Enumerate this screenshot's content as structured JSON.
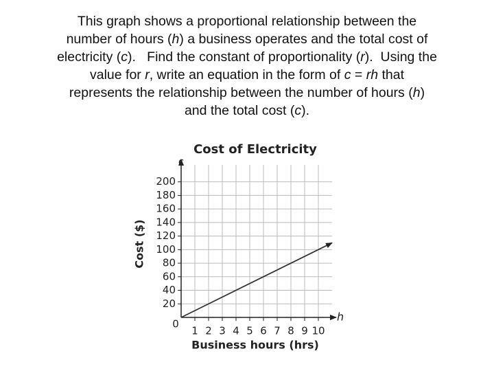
{
  "question": [
    [
      {
        "text": "This graph shows a proportional relationship between the"
      }
    ],
    [
      {
        "text": "number of hours ("
      },
      {
        "text": "h",
        "italic": true
      },
      {
        "text": ") a business operates and the total cost of"
      }
    ],
    [
      {
        "text": "electricity ("
      },
      {
        "text": "c",
        "italic": true
      },
      {
        "text": ").   Find the constant of proportionality ("
      },
      {
        "text": "r",
        "italic": true
      },
      {
        "text": ").  Using the"
      }
    ],
    [
      {
        "text": "value for "
      },
      {
        "text": "r",
        "italic": true
      },
      {
        "text": ", write an equation in the form of "
      },
      {
        "text": "c",
        "italic": true
      },
      {
        "text": " = "
      },
      {
        "text": "rh",
        "italic": true
      },
      {
        "text": " that"
      }
    ],
    [
      {
        "text": "represents the relationship between the number of hours ("
      },
      {
        "text": "h",
        "italic": true
      },
      {
        "text": ")"
      }
    ],
    [
      {
        "text": "and the total cost ("
      },
      {
        "text": "c",
        "italic": true
      },
      {
        "text": ")."
      }
    ]
  ],
  "chart_data": {
    "type": "line",
    "title": "Cost of Electricity",
    "x_label": "Business hours (hrs)",
    "y_label": "Cost ($)",
    "x_axis_name": "h",
    "y_axis_name": "c",
    "origin_label": "0",
    "xlim": [
      0,
      11
    ],
    "ylim": [
      0,
      225
    ],
    "xticks": [
      1,
      2,
      3,
      4,
      5,
      6,
      7,
      8,
      9,
      10
    ],
    "yticks": [
      20,
      40,
      60,
      80,
      100,
      120,
      140,
      160,
      180,
      200
    ],
    "grid": true,
    "series": [
      {
        "color": "#333333",
        "x": [
          0,
          11
        ],
        "values": [
          0,
          110
        ]
      }
    ]
  }
}
